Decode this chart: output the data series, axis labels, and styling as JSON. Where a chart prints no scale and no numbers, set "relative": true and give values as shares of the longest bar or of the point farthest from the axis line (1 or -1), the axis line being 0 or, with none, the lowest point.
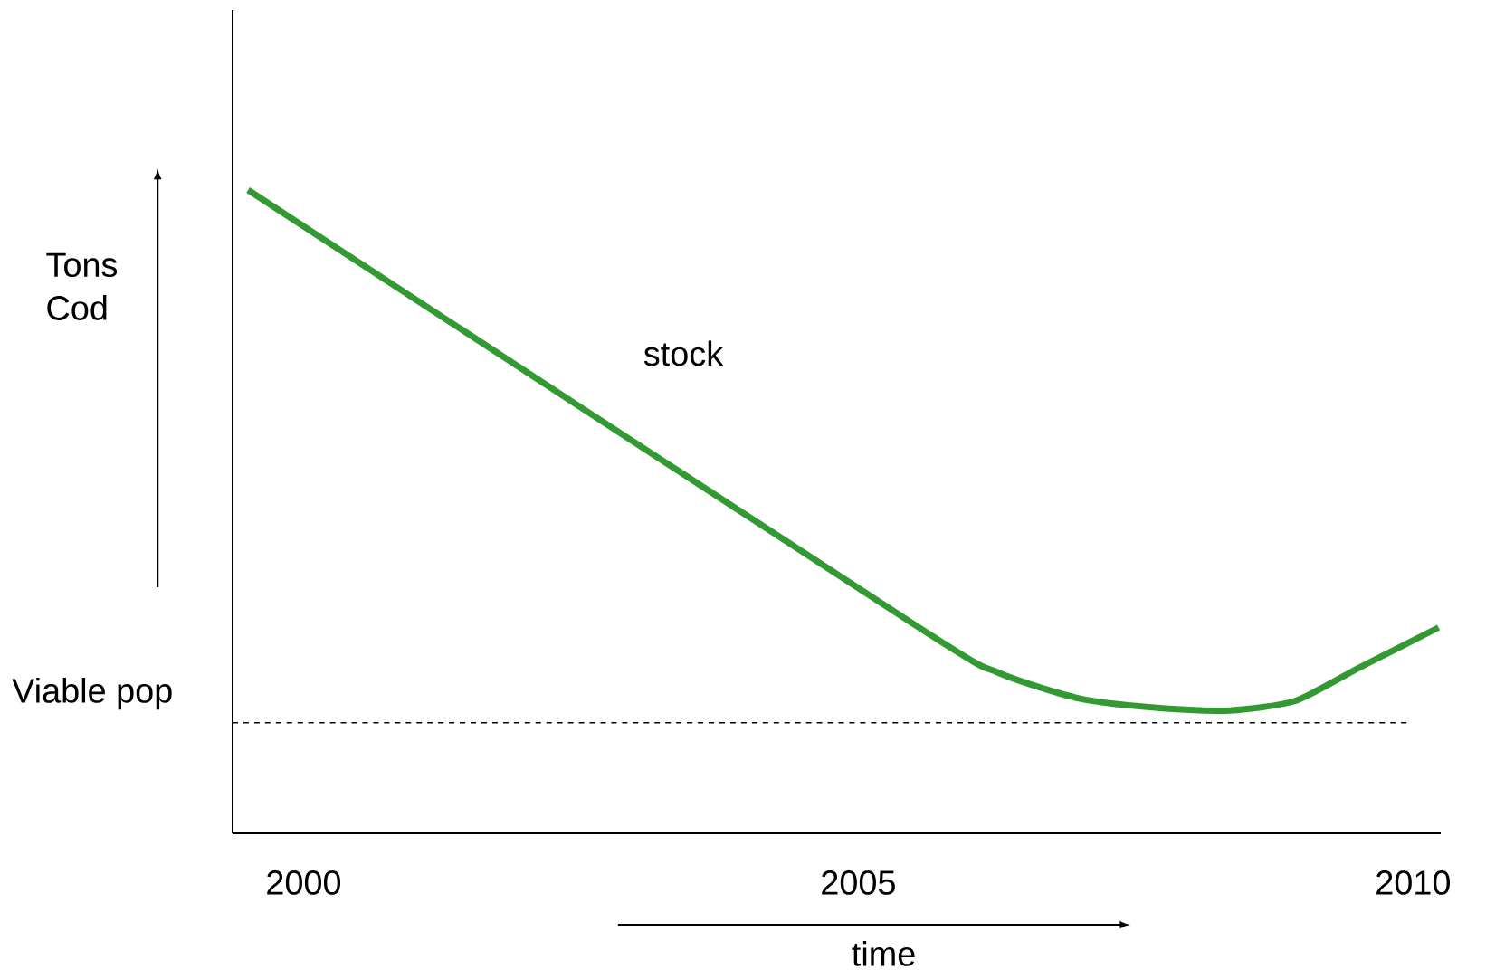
{
  "chart_data": {
    "type": "line",
    "relative": true,
    "xlabel": "time",
    "ylabel": "Tons Cod",
    "x": [
      1999.5,
      2005.51,
      2006.26,
      2007.01,
      2007.77,
      2008.35,
      2008.94,
      2009.52,
      2010.23
    ],
    "annotations": [
      "stock"
    ],
    "series": [
      {
        "color": "#339933",
        "values": [
          1.0,
          0.324,
          0.25,
          0.209,
          0.194,
          0.191,
          0.206,
          0.258,
          0.32
        ]
      }
    ],
    "xlim": [
      1999.36,
      2010.25
    ],
    "xticks": [
      2000,
      2005,
      2010
    ],
    "ref_lines": [
      {
        "axis": "y",
        "value": 0.172,
        "label": "Viable pop",
        "line_style": "dashed",
        "color": "#000000"
      }
    ],
    "grid": false,
    "marker": "none",
    "line_style": "solid"
  }
}
